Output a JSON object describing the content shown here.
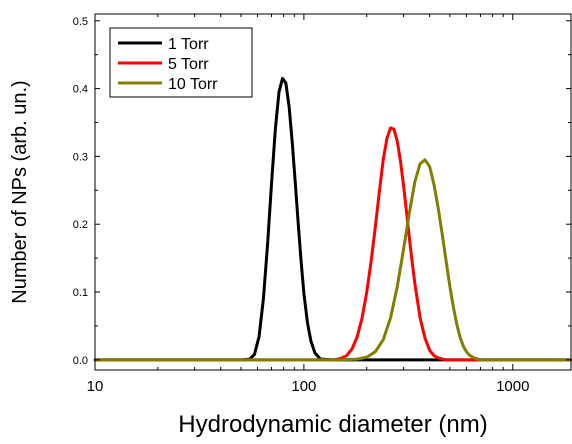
{
  "chart_data": {
    "type": "line",
    "title": "",
    "xlabel": "Hydrodynamic diameter (nm)",
    "ylabel": "Number of NPs (arb. un.)",
    "xscale": "log",
    "xlim": [
      10,
      1900
    ],
    "ylim": [
      -0.015,
      0.51
    ],
    "x_ticks": [
      {
        "value": 10,
        "label": "10"
      },
      {
        "value": 100,
        "label": "100"
      },
      {
        "value": 1000,
        "label": "1000"
      }
    ],
    "y_ticks": [
      {
        "value": 0.0,
        "label": "0.0"
      },
      {
        "value": 0.1,
        "label": "0.1"
      },
      {
        "value": 0.2,
        "label": "0.2"
      },
      {
        "value": 0.3,
        "label": "0.3"
      },
      {
        "value": 0.4,
        "label": "0.4"
      },
      {
        "value": 0.5,
        "label": "0.5"
      }
    ],
    "grid": false,
    "legend_position": "top-left",
    "series": [
      {
        "name": "1 Torr",
        "color": "#000000",
        "x": [
          10,
          40,
          50,
          55,
          58,
          61,
          64,
          67,
          70,
          73,
          76,
          79,
          82,
          85,
          88,
          91,
          94,
          97,
          100,
          104,
          108,
          113,
          120,
          140,
          1900
        ],
        "y": [
          0,
          0,
          0,
          0.001,
          0.008,
          0.034,
          0.09,
          0.17,
          0.26,
          0.34,
          0.395,
          0.415,
          0.408,
          0.373,
          0.32,
          0.26,
          0.2,
          0.145,
          0.098,
          0.055,
          0.028,
          0.01,
          0.001,
          0,
          0
        ]
      },
      {
        "name": "5 Torr",
        "color": "#ff0000",
        "x": [
          10,
          100,
          140,
          150,
          160,
          170,
          180,
          190,
          200,
          210,
          220,
          230,
          240,
          250,
          260,
          270,
          280,
          290,
          300,
          310,
          320,
          330,
          340,
          360,
          380,
          400,
          420,
          440,
          460,
          480,
          500,
          1900
        ],
        "y": [
          0,
          0,
          0,
          0.002,
          0.006,
          0.016,
          0.034,
          0.062,
          0.1,
          0.146,
          0.197,
          0.249,
          0.296,
          0.327,
          0.342,
          0.34,
          0.322,
          0.293,
          0.257,
          0.218,
          0.179,
          0.144,
          0.112,
          0.062,
          0.032,
          0.014,
          0.006,
          0.003,
          0.001,
          0,
          0,
          0
        ]
      },
      {
        "name": "10 Torr",
        "color": "#7f7f00",
        "x": [
          10,
          150,
          180,
          200,
          220,
          240,
          260,
          280,
          300,
          320,
          340,
          360,
          380,
          400,
          420,
          440,
          460,
          480,
          500,
          520,
          540,
          560,
          580,
          600,
          620,
          650,
          700,
          1900
        ],
        "y": [
          0,
          0,
          0.001,
          0.004,
          0.012,
          0.03,
          0.062,
          0.108,
          0.163,
          0.217,
          0.263,
          0.289,
          0.295,
          0.285,
          0.258,
          0.223,
          0.184,
          0.145,
          0.108,
          0.077,
          0.052,
          0.033,
          0.02,
          0.012,
          0.007,
          0.003,
          0,
          0
        ]
      }
    ]
  }
}
